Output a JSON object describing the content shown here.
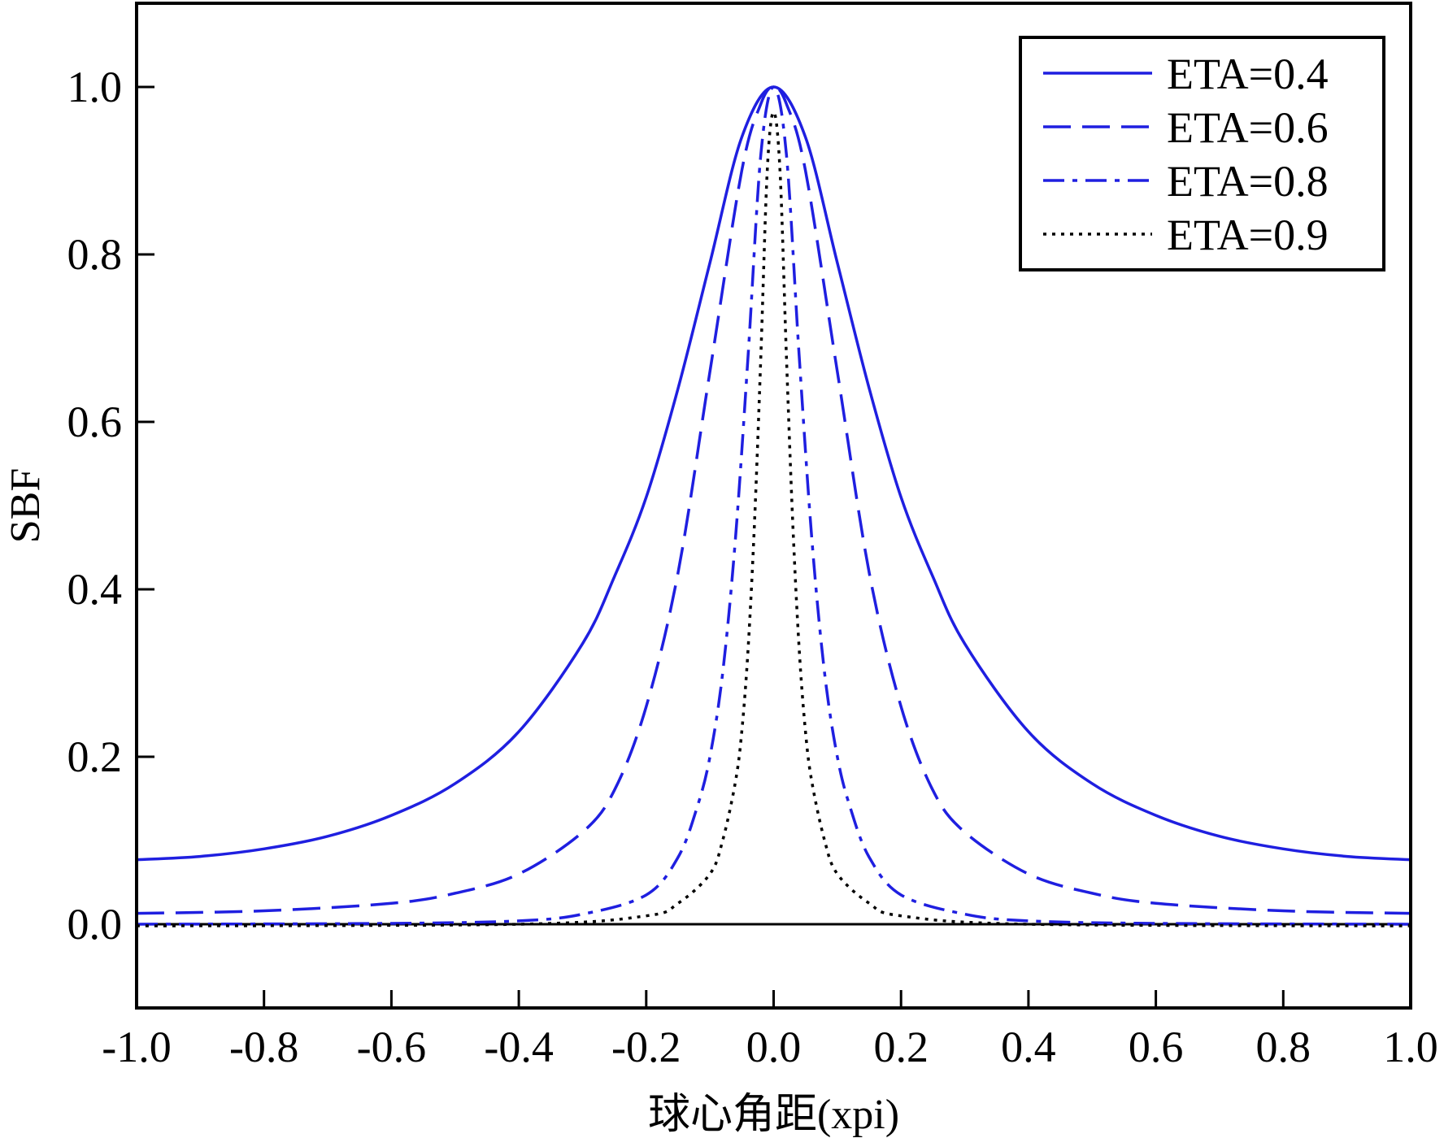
{
  "chart_data": {
    "type": "line",
    "title": "",
    "xlabel": "球心角距(xpi)",
    "ylabel": "SBF",
    "xlim": [
      -1.0,
      1.0
    ],
    "ylim": [
      -0.1,
      1.1
    ],
    "xticks": [
      -1.0,
      -0.8,
      -0.6,
      -0.4,
      -0.2,
      0.0,
      0.2,
      0.4,
      0.6,
      0.8,
      1.0
    ],
    "xtick_labels": [
      "-1.0",
      "-0.8",
      "-0.6",
      "-0.4",
      "-0.2",
      "0.0",
      "0.2",
      "0.4",
      "0.6",
      "0.8",
      "1.0"
    ],
    "yticks": [
      0.0,
      0.2,
      0.4,
      0.6,
      0.8,
      1.0
    ],
    "ytick_labels": [
      "0.0",
      "0.2",
      "0.4",
      "0.6",
      "0.8",
      "1.0"
    ],
    "grid": false,
    "legend_position": "top-right",
    "zero_line": true,
    "series": [
      {
        "name": "ETA=0.4",
        "style": "solid",
        "color": "#1f1fe0",
        "x": [
          -1.0,
          -0.9,
          -0.8,
          -0.7,
          -0.6,
          -0.5,
          -0.4,
          -0.3,
          -0.25,
          -0.2,
          -0.15,
          -0.1,
          -0.05,
          0.0,
          0.05,
          0.1,
          0.15,
          0.2,
          0.25,
          0.3,
          0.4,
          0.5,
          0.6,
          0.7,
          0.8,
          0.9,
          1.0
        ],
        "values": [
          0.077,
          0.081,
          0.09,
          0.105,
          0.13,
          0.168,
          0.23,
          0.335,
          0.415,
          0.51,
          0.64,
          0.79,
          0.94,
          1.0,
          0.94,
          0.79,
          0.64,
          0.51,
          0.415,
          0.335,
          0.23,
          0.168,
          0.13,
          0.105,
          0.09,
          0.081,
          0.077
        ]
      },
      {
        "name": "ETA=0.6",
        "style": "dashed",
        "color": "#1f1fe0",
        "x": [
          -1.0,
          -0.8,
          -0.6,
          -0.5,
          -0.4,
          -0.3,
          -0.25,
          -0.2,
          -0.15,
          -0.1,
          -0.05,
          -0.02,
          0.0,
          0.02,
          0.05,
          0.1,
          0.15,
          0.2,
          0.25,
          0.3,
          0.4,
          0.5,
          0.6,
          0.8,
          1.0
        ],
        "values": [
          0.013,
          0.016,
          0.025,
          0.037,
          0.06,
          0.11,
          0.16,
          0.26,
          0.42,
          0.66,
          0.9,
          0.98,
          1.0,
          0.98,
          0.9,
          0.66,
          0.42,
          0.26,
          0.16,
          0.11,
          0.06,
          0.037,
          0.025,
          0.016,
          0.013
        ]
      },
      {
        "name": "ETA=0.8",
        "style": "dashdot",
        "color": "#1f1fe0",
        "x": [
          -1.0,
          -0.6,
          -0.4,
          -0.3,
          -0.2,
          -0.15,
          -0.12,
          -0.1,
          -0.08,
          -0.06,
          -0.04,
          -0.02,
          0.0,
          0.02,
          0.04,
          0.06,
          0.08,
          0.1,
          0.12,
          0.15,
          0.2,
          0.3,
          0.4,
          0.6,
          1.0
        ],
        "values": [
          0.0,
          0.001,
          0.004,
          0.012,
          0.035,
          0.08,
          0.14,
          0.2,
          0.3,
          0.46,
          0.68,
          0.92,
          1.0,
          0.92,
          0.68,
          0.46,
          0.3,
          0.2,
          0.14,
          0.08,
          0.035,
          0.012,
          0.004,
          0.001,
          0.0
        ]
      },
      {
        "name": "ETA=0.9",
        "style": "dotted",
        "color": "#000000",
        "x": [
          -1.0,
          -0.4,
          -0.2,
          -0.15,
          -0.1,
          -0.08,
          -0.06,
          -0.05,
          -0.04,
          -0.03,
          -0.02,
          -0.01,
          0.0,
          0.01,
          0.02,
          0.03,
          0.04,
          0.05,
          0.06,
          0.08,
          0.1,
          0.15,
          0.2,
          0.4,
          1.0
        ],
        "values": [
          -0.002,
          0.0,
          0.01,
          0.025,
          0.06,
          0.1,
          0.17,
          0.23,
          0.33,
          0.48,
          0.68,
          0.9,
          0.97,
          0.9,
          0.68,
          0.48,
          0.33,
          0.23,
          0.17,
          0.1,
          0.06,
          0.025,
          0.01,
          0.0,
          -0.002
        ]
      }
    ]
  }
}
